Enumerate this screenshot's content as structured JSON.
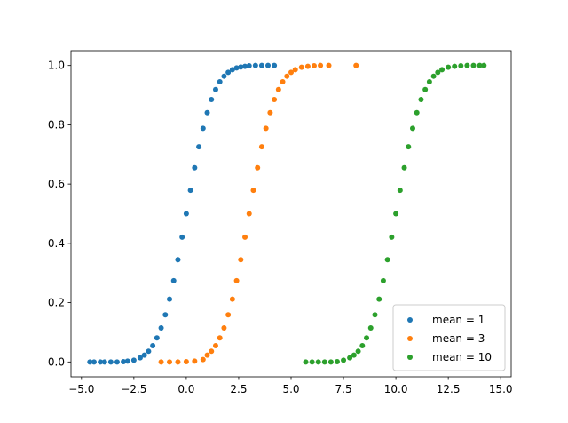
{
  "chart_data": {
    "type": "scatter",
    "title": "",
    "xlabel": "",
    "ylabel": "",
    "xlim": [
      -5.5,
      15.5
    ],
    "ylim": [
      -0.05,
      1.05
    ],
    "xticks": [
      -5.0,
      -2.5,
      0.0,
      2.5,
      5.0,
      7.5,
      10.0,
      12.5,
      15.0
    ],
    "xtick_labels": [
      "−5.0",
      "−2.5",
      "0.0",
      "2.5",
      "5.0",
      "7.5",
      "10.0",
      "12.5",
      "15.0"
    ],
    "yticks": [
      0.0,
      0.2,
      0.4,
      0.6,
      0.8,
      1.0
    ],
    "ytick_labels": [
      "0.0",
      "0.2",
      "0.4",
      "0.6",
      "0.8",
      "1.0"
    ],
    "grid": false,
    "legend_position": "lower-right",
    "series": [
      {
        "name": "mean = 1",
        "color": "#1f77b4",
        "x": [
          -4.6,
          -4.4,
          -4.1,
          -3.9,
          -3.6,
          -3.3,
          -3.0,
          -2.8,
          -2.5,
          -2.2,
          -2.0,
          -1.8,
          -1.6,
          -1.4,
          -1.2,
          -1.0,
          -0.8,
          -0.6,
          -0.4,
          -0.2,
          0.0,
          0.2,
          0.4,
          0.6,
          0.8,
          1.0,
          1.2,
          1.4,
          1.6,
          1.8,
          2.0,
          2.2,
          2.4,
          2.6,
          2.8,
          3.0,
          3.3,
          3.6,
          3.9,
          4.2
        ],
        "y": [
          0.0,
          0.0,
          0.0,
          0.0,
          0.0,
          0.0,
          0.001,
          0.003,
          0.006,
          0.014,
          0.023,
          0.036,
          0.055,
          0.081,
          0.115,
          0.159,
          0.212,
          0.274,
          0.345,
          0.421,
          0.5,
          0.579,
          0.655,
          0.726,
          0.788,
          0.841,
          0.885,
          0.919,
          0.945,
          0.964,
          0.977,
          0.986,
          0.992,
          0.995,
          0.997,
          0.999,
          1.0,
          1.0,
          1.0,
          1.0
        ]
      },
      {
        "name": "mean = 3",
        "color": "#ff7f0e",
        "x": [
          -1.2,
          -0.8,
          -0.4,
          0.0,
          0.4,
          0.8,
          1.0,
          1.2,
          1.4,
          1.6,
          1.8,
          2.0,
          2.2,
          2.4,
          2.6,
          2.8,
          3.0,
          3.2,
          3.4,
          3.6,
          3.8,
          4.0,
          4.2,
          4.4,
          4.6,
          4.8,
          5.0,
          5.2,
          5.5,
          5.8,
          6.1,
          6.4,
          6.8,
          8.1
        ],
        "y": [
          0.0,
          0.0,
          0.0,
          0.001,
          0.003,
          0.008,
          0.023,
          0.036,
          0.055,
          0.081,
          0.115,
          0.159,
          0.212,
          0.274,
          0.345,
          0.421,
          0.5,
          0.579,
          0.655,
          0.726,
          0.788,
          0.841,
          0.885,
          0.919,
          0.945,
          0.964,
          0.977,
          0.986,
          0.994,
          0.997,
          0.999,
          1.0,
          1.0,
          1.0
        ]
      },
      {
        "name": "mean = 10",
        "color": "#2ca02c",
        "x": [
          5.7,
          6.0,
          6.3,
          6.6,
          6.9,
          7.2,
          7.5,
          7.8,
          8.0,
          8.2,
          8.4,
          8.6,
          8.8,
          9.0,
          9.2,
          9.4,
          9.6,
          9.8,
          10.0,
          10.2,
          10.4,
          10.6,
          10.8,
          11.0,
          11.2,
          11.4,
          11.6,
          11.8,
          12.0,
          12.2,
          12.5,
          12.8,
          13.1,
          13.4,
          13.7,
          14.0,
          14.2
        ],
        "y": [
          0.0,
          0.0,
          0.0,
          0.0,
          0.0,
          0.001,
          0.006,
          0.014,
          0.023,
          0.036,
          0.055,
          0.081,
          0.115,
          0.159,
          0.212,
          0.274,
          0.345,
          0.421,
          0.5,
          0.579,
          0.655,
          0.726,
          0.788,
          0.841,
          0.885,
          0.919,
          0.945,
          0.964,
          0.977,
          0.986,
          0.994,
          0.997,
          0.999,
          1.0,
          1.0,
          1.0,
          1.0
        ]
      }
    ]
  }
}
